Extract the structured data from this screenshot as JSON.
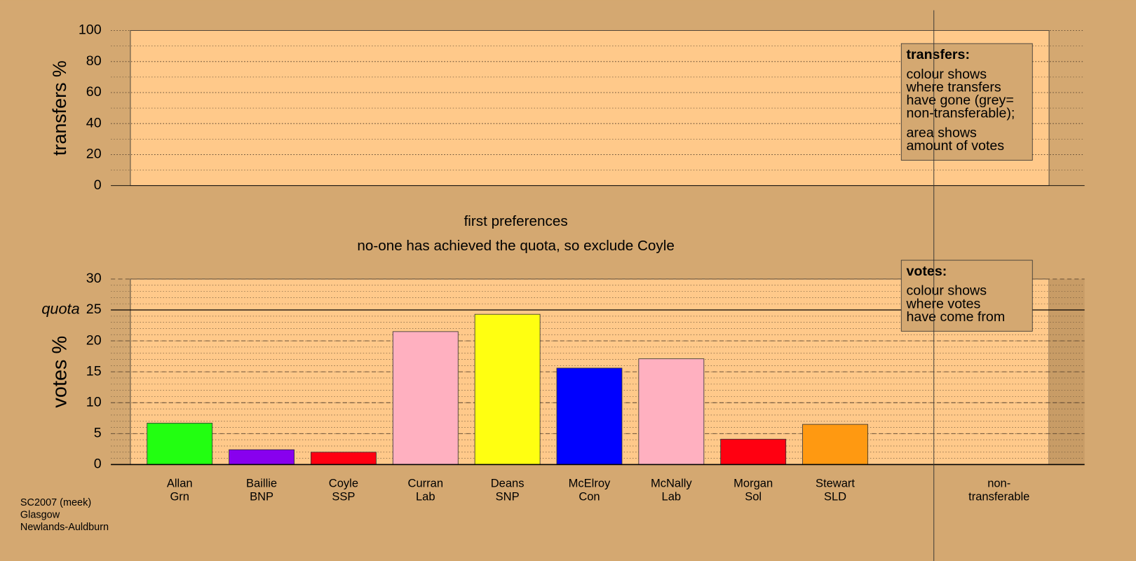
{
  "chart_data": [
    {
      "type": "bar",
      "y_label": "transfers %",
      "ylim": [
        0,
        100
      ],
      "yticks": [
        0,
        20,
        40,
        60,
        80,
        100
      ],
      "categories": [],
      "values": [],
      "legend": {
        "title": "transfers:",
        "paragraphs": [
          [
            "colour shows",
            "where transfers",
            "have gone (grey=",
            "non-transferable);"
          ],
          [
            "area shows",
            "amount of votes"
          ]
        ]
      }
    },
    {
      "type": "bar",
      "y_label": "votes %",
      "ylim": [
        0,
        30
      ],
      "yticks": [
        0,
        5,
        10,
        15,
        20,
        25,
        30
      ],
      "quota": 25,
      "quota_label": "quota",
      "categories": [
        [
          "Allan",
          "Grn"
        ],
        [
          "Baillie",
          "BNP"
        ],
        [
          "Coyle",
          "SSP"
        ],
        [
          "Curran",
          "Lab"
        ],
        [
          "Deans",
          "SNP"
        ],
        [
          "McElroy",
          "Con"
        ],
        [
          "McNally",
          "Lab"
        ],
        [
          "Morgan",
          "Sol"
        ],
        [
          "Stewart",
          "SLD"
        ]
      ],
      "values": [
        6.7,
        2.4,
        2.0,
        21.5,
        24.3,
        15.6,
        17.1,
        4.1,
        6.5
      ],
      "colors": [
        "#22ff11",
        "#8800ee",
        "#ff0011",
        "#ffb0c0",
        "#ffff11",
        "#0000ff",
        "#ffb0c0",
        "#ff0011",
        "#ff9911"
      ],
      "extra_category": [
        "non-",
        "transferable"
      ],
      "legend": {
        "title": "votes:",
        "paragraphs": [
          [
            "colour shows",
            "where votes",
            "have come from"
          ]
        ]
      }
    }
  ],
  "stage_title": "first preferences",
  "stage_note": "no-one has achieved the quota, so exclude Coyle",
  "footer": [
    "SC2007 (meek)",
    "Glasgow",
    "Newlands-Auldburn"
  ]
}
